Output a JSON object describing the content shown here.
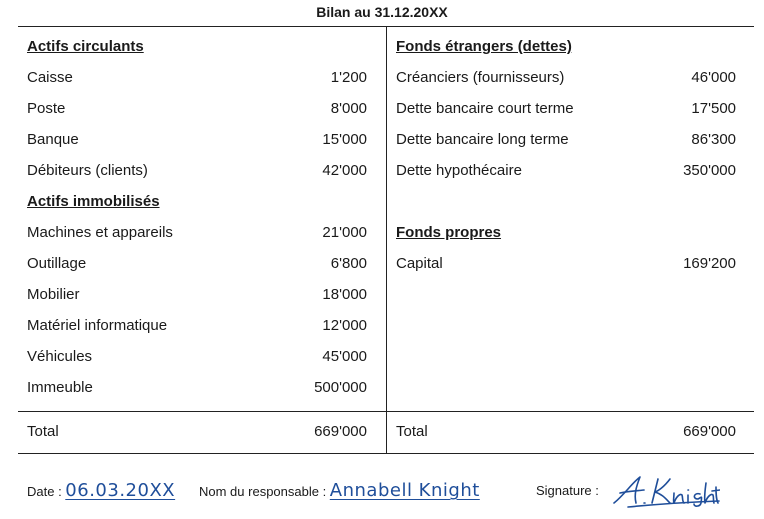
{
  "title": "Bilan au 31.12.20XX",
  "left": {
    "rows": [
      {
        "label": "Actifs circulants",
        "value": "",
        "head": true
      },
      {
        "label": "Caisse",
        "value": "1'200"
      },
      {
        "label": "Poste",
        "value": "8'000"
      },
      {
        "label": "Banque",
        "value": "15'000"
      },
      {
        "label": "Débiteurs (clients)",
        "value": "42'000"
      },
      {
        "label": "Actifs immobilisés",
        "value": "",
        "head": true
      },
      {
        "label": "Machines et appareils",
        "value": "21'000"
      },
      {
        "label": "Outillage",
        "value": "6'800"
      },
      {
        "label": "Mobilier",
        "value": "18'000"
      },
      {
        "label": "Matériel informatique",
        "value": "12'000"
      },
      {
        "label": "Véhicules",
        "value": "45'000"
      },
      {
        "label": "Immeuble",
        "value": "500'000"
      }
    ],
    "total_label": "Total",
    "total_value": "669'000"
  },
  "right": {
    "rows": [
      {
        "label": "Fonds étrangers (dettes)",
        "value": "",
        "head": true
      },
      {
        "label": "Créanciers (fournisseurs)",
        "value": "46'000"
      },
      {
        "label": "Dette bancaire court terme",
        "value": "17'500"
      },
      {
        "label": "Dette bancaire long terme",
        "value": "86'300"
      },
      {
        "label": "Dette hypothécaire",
        "value": "350'000"
      },
      {
        "label": "",
        "value": ""
      },
      {
        "label": "Fonds propres",
        "value": "",
        "head": true
      },
      {
        "label": "Capital",
        "value": "169'200"
      }
    ],
    "total_label": "Total",
    "total_value": "669'000"
  },
  "footer": {
    "date_label": "Date : ",
    "date_value": "06.03.20XX",
    "resp_label": "Nom du responsable : ",
    "resp_value": "Annabell Knight",
    "sig_label": "Signature : ",
    "sig_value": "A. Knight"
  },
  "colors": {
    "ink": "#1f4e9a",
    "text": "#1a1a1a",
    "rule": "#222222"
  }
}
